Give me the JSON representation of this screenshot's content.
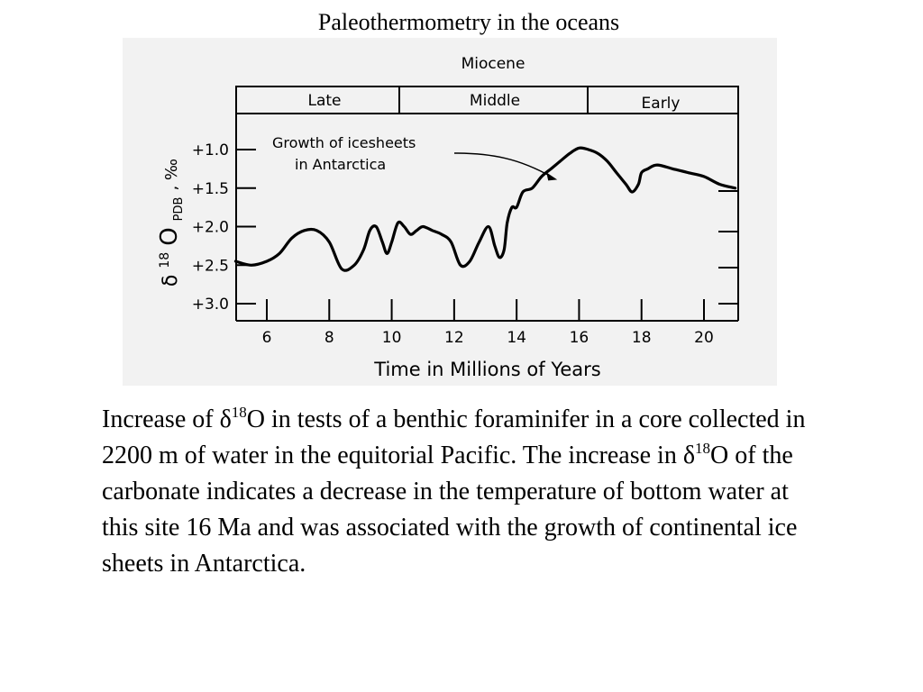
{
  "slide": {
    "title": "Paleothermometry in the oceans"
  },
  "caption": {
    "p1": "Increase of ",
    "delta": "δ",
    "sup": "18",
    "p2": "O in tests of a benthic foraminifer in a core collected in 2200 m of water in the equitorial Pacific. The increase in ",
    "p3": "O of the carbonate indicates a decrease in the temperature of bottom water at this site 16 Ma and was associated with the growth of continental ice sheets in Antarctica."
  },
  "chart_data": {
    "type": "line",
    "epoch": "Miocene",
    "subdivisions": [
      {
        "label": "Late",
        "start": 5,
        "end": 10.2
      },
      {
        "label": "Middle",
        "start": 10.2,
        "end": 16.2
      },
      {
        "label": "Early",
        "start": 16.2,
        "end": 21
      }
    ],
    "annotation": {
      "line1": "Growth of icesheets",
      "line2": "in Antarctica",
      "arrow_to": [
        15.3,
        1.25
      ]
    },
    "ylabel": {
      "delta": "δ",
      "sup": "18",
      "O": "O",
      "sub": "PDB",
      "unit": ", ‰"
    },
    "xlabel": "Time in Millions of Years",
    "x_ticks": [
      6,
      8,
      10,
      12,
      14,
      16,
      18,
      20
    ],
    "x_tick_labels": [
      "6",
      "8",
      "10",
      "12",
      "14",
      "16",
      "18",
      "20"
    ],
    "y_ticks": [
      1.0,
      1.5,
      2.0,
      2.5,
      3.0
    ],
    "y_tick_labels": [
      "+1.0",
      "+1.5",
      "+2.0",
      "+2.5",
      "+3.0"
    ],
    "xlim": [
      5,
      21
    ],
    "ylim_top": 0.5,
    "ylim_bottom": 3.2,
    "y_reversed": true,
    "series": [
      {
        "x": [
          5.0,
          5.5,
          6.0,
          6.4,
          6.8,
          7.2,
          7.6,
          8.0,
          8.4,
          8.8,
          9.1,
          9.3,
          9.5,
          9.7,
          9.85,
          10.0,
          10.2,
          10.4,
          10.6,
          10.8,
          11.0,
          11.3,
          11.6,
          11.9,
          12.2,
          12.5,
          12.8,
          13.1,
          13.3,
          13.45,
          13.6,
          13.7,
          13.85,
          14.0,
          14.2,
          14.5,
          14.8,
          15.1,
          15.4,
          15.7,
          16.0,
          16.3,
          16.6,
          16.9,
          17.2,
          17.5,
          17.7,
          17.9,
          18.0,
          18.2,
          18.5,
          19.0,
          19.5,
          20.0,
          20.5,
          21.0
        ],
        "y": [
          2.45,
          2.5,
          2.45,
          2.35,
          2.15,
          2.05,
          2.05,
          2.2,
          2.55,
          2.5,
          2.3,
          2.05,
          2.0,
          2.2,
          2.35,
          2.2,
          1.95,
          2.0,
          2.1,
          2.05,
          2.0,
          2.05,
          2.1,
          2.2,
          2.5,
          2.45,
          2.2,
          2.0,
          2.25,
          2.4,
          2.3,
          1.95,
          1.75,
          1.75,
          1.55,
          1.5,
          1.35,
          1.25,
          1.15,
          1.05,
          0.98,
          1.0,
          1.05,
          1.15,
          1.3,
          1.45,
          1.55,
          1.45,
          1.3,
          1.25,
          1.2,
          1.25,
          1.3,
          1.35,
          1.45,
          1.5
        ]
      }
    ]
  }
}
